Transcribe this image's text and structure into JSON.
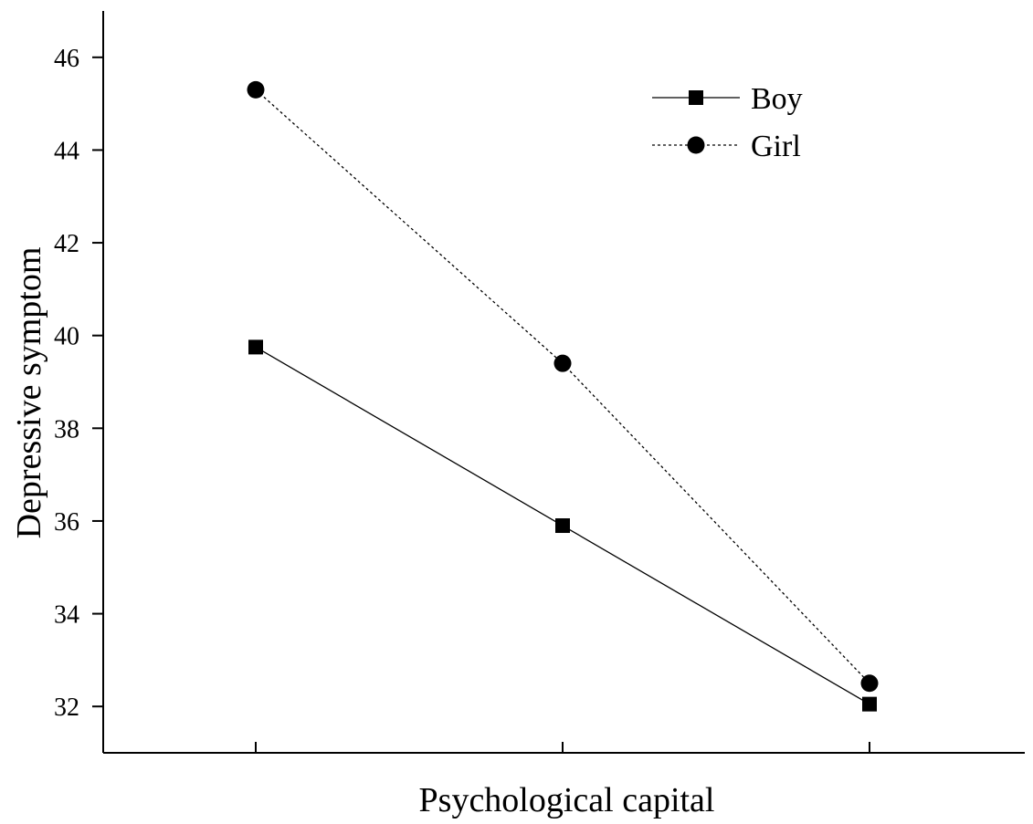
{
  "chart_data": {
    "type": "line",
    "title": "",
    "xlabel": "Psychological capital",
    "ylabel": "Depressive symptom",
    "categories": [
      "",
      "",
      ""
    ],
    "ylim": [
      31,
      47
    ],
    "yticks": [
      32,
      34,
      36,
      38,
      40,
      42,
      44,
      46
    ],
    "grid": false,
    "legend": "top-right",
    "series": [
      {
        "name": "Boy",
        "marker": "square",
        "line": "solid",
        "color": "#000000",
        "values": [
          39.75,
          35.9,
          32.05
        ]
      },
      {
        "name": "Girl",
        "marker": "circle",
        "line": "dashed",
        "color": "#000000",
        "values": [
          45.3,
          39.4,
          32.5
        ]
      }
    ]
  }
}
